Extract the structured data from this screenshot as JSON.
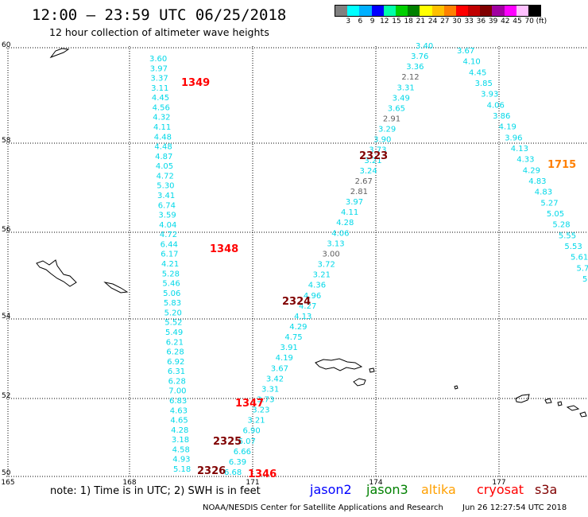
{
  "title": "12:00 — 23:59 UTC 06/25/2018",
  "subtitle": "12 hour collection of altimeter wave heights",
  "legend": {
    "colors": [
      "#808080",
      "#00ffff",
      "#00b0ff",
      "#0000ff",
      "#00ffaa",
      "#00d000",
      "#008000",
      "#ffff00",
      "#ffc000",
      "#ff8000",
      "#ff0000",
      "#c00000",
      "#800000",
      "#a000a0",
      "#ff00ff",
      "#ffc0ff",
      "#000000"
    ],
    "labels": [
      "3",
      "6",
      "9",
      "12",
      "15",
      "18",
      "21",
      "24",
      "27",
      "30",
      "33",
      "36",
      "39",
      "42",
      "45",
      "70",
      "(ft)"
    ]
  },
  "axes": {
    "lon_labels": [
      "165",
      "168",
      "171",
      "174",
      "177"
    ],
    "lat_labels": [
      "60",
      "58",
      "56",
      "54",
      "52",
      "50"
    ]
  },
  "tracks": [
    {
      "id": "track-1349",
      "values": [
        "3.60",
        "3.97",
        "3.37",
        "3.11",
        "4.45",
        "4.56",
        "4.32",
        "4.11",
        "4.48",
        "4.48",
        "4.87",
        "4.05",
        "4.72",
        "5.30",
        "3.41",
        "6.74",
        "3.59",
        "4.04",
        "4.72",
        "6.44",
        "6.17",
        "4.21",
        "5.28",
        "5.46",
        "5.06",
        "5.83",
        "5.20",
        "5.52",
        "5.49",
        "6.21",
        "6.28",
        "6.92",
        "6.31",
        "6.28",
        "7.00",
        "6.83",
        "4.63",
        "4.65",
        "4.28",
        "3.18",
        "4.58",
        "4.93",
        "5.18"
      ]
    },
    {
      "id": "track-2324",
      "values": [
        "3.40",
        "3.76",
        "3.36",
        "2.12",
        "3.31",
        "3.49",
        "3.65",
        "2.91",
        "3.29",
        "3.90",
        "3.73",
        "3.21",
        "3.24",
        "2.67",
        "2.81",
        "3.97",
        "4.11",
        "4.28",
        "4.06",
        "3.13",
        "3.00",
        "3.72",
        "3.21",
        "4.36",
        "4.96",
        "4.27",
        "4.13",
        "4.29",
        "4.75",
        "3.91",
        "4.19",
        "3.67",
        "3.42",
        "3.31",
        "3.73",
        "3.23",
        "3.21",
        "6.90",
        "6.07",
        "6.66",
        "6.39",
        "6.68"
      ]
    },
    {
      "id": "track-1715",
      "values": [
        "3.67",
        "4.10",
        "4.45",
        "3.85",
        "3.93",
        "4.06",
        "3.86",
        "4.19",
        "3.96",
        "4.13",
        "4.33",
        "4.29",
        "4.83",
        "4.83",
        "5.27",
        "5.05",
        "5.28",
        "5.55",
        "5.53",
        "5.61",
        "5.7",
        "5."
      ]
    }
  ],
  "pass_labels": [
    {
      "text": "1349",
      "color": "#ff0000"
    },
    {
      "text": "2323",
      "color": "#800000"
    },
    {
      "text": "1715",
      "color": "#ff8000"
    },
    {
      "text": "1348",
      "color": "#ff0000"
    },
    {
      "text": "2324",
      "color": "#800000"
    },
    {
      "text": "1347",
      "color": "#ff0000"
    },
    {
      "text": "2325",
      "color": "#800000"
    },
    {
      "text": "2326",
      "color": "#800000"
    },
    {
      "text": "1346",
      "color": "#ff0000"
    }
  ],
  "footer": {
    "note": "note: 1) Time is in UTC; 2) SWH is in feet",
    "satellites": [
      {
        "name": "jason2",
        "color": "#0000ff"
      },
      {
        "name": "jason3",
        "color": "#008000"
      },
      {
        "name": "altika",
        "color": "#ffa000"
      },
      {
        "name": "cryosat",
        "color": "#ff0000"
      },
      {
        "name": "s3a",
        "color": "#800000"
      }
    ],
    "credit": "NOAA/NESDIS Center for Satellite Applications and Research",
    "timestamp": "Jun 26 12:27:54 UTC 2018"
  }
}
